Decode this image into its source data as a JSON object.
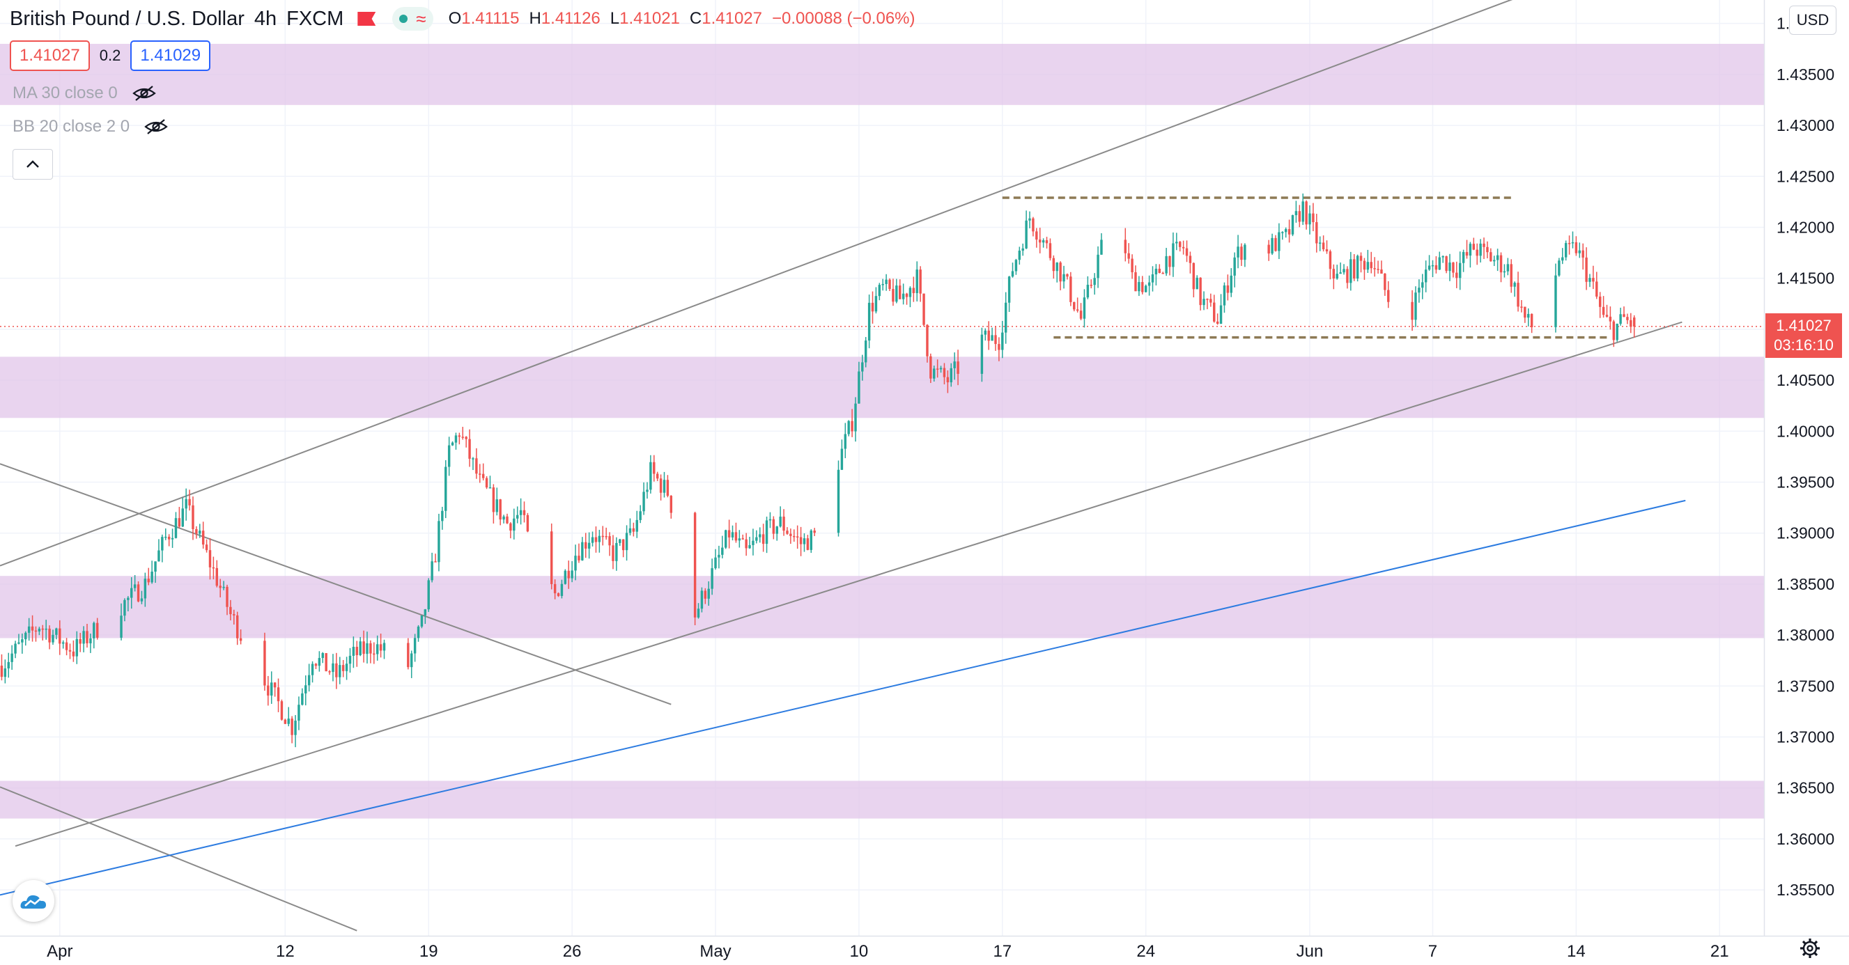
{
  "header": {
    "symbol": "British Pound / U.S. Dollar",
    "interval": "4h",
    "broker": "FXCM",
    "ohlc": {
      "o_label": "O",
      "o": "1.41115",
      "h_label": "H",
      "h": "1.41126",
      "l_label": "L",
      "l": "1.41021",
      "c_label": "C",
      "c": "1.41027",
      "change": "−0.00088 (−0.06%)"
    }
  },
  "quote": {
    "bid": "1.41027",
    "spread": "0.2",
    "ask": "1.41029"
  },
  "indicators": {
    "ma": "MA 30 close 0",
    "bb": "BB 20 close 2 0"
  },
  "currency": "USD",
  "price_tag": {
    "price": "1.41027",
    "countdown": "03:16:10"
  },
  "colors": {
    "up": "#26a69a",
    "down": "#ef5350",
    "zone": "#e1c6ea",
    "trend_blue": "#2c7be0",
    "level": "#8d7a55"
  },
  "chart_data": {
    "type": "candlestick",
    "title": "British Pound / U.S. Dollar",
    "ylim": [
      1.3505,
      1.4423
    ],
    "y_ticks": [
      "1.35500",
      "1.36000",
      "1.36500",
      "1.37000",
      "1.37500",
      "1.38000",
      "1.38500",
      "1.39000",
      "1.39500",
      "1.40000",
      "1.40500",
      "1.41000",
      "1.41500",
      "1.42000",
      "1.42500",
      "1.43000",
      "1.43500",
      "1.44000"
    ],
    "x_ticks": [
      "Apr",
      "12",
      "19",
      "26",
      "May",
      "10",
      "17",
      "24",
      "Jun",
      "7",
      "14",
      "21"
    ],
    "x_tick_dates": [
      "2021-04-01",
      "2021-04-12",
      "2021-04-19",
      "2021-04-26",
      "2021-05-03",
      "2021-05-10",
      "2021-05-17",
      "2021-05-24",
      "2021-06-01",
      "2021-06-07",
      "2021-06-14",
      "2021-06-21"
    ],
    "xlim": [
      "2021-03-29 02:00",
      "2021-06-23 04:00"
    ],
    "current_price": 1.41027,
    "horizontal_zones": [
      {
        "from": 1.432,
        "to": 1.438
      },
      {
        "from": 1.4013,
        "to": 1.4073
      },
      {
        "from": 1.3797,
        "to": 1.3858
      },
      {
        "from": 1.362,
        "to": 1.3657
      }
    ],
    "dashed_levels": [
      {
        "price": 1.4229,
        "from": "2021-05-17 00:00",
        "to": "2021-06-11 00:00"
      },
      {
        "price": 1.4092,
        "from": "2021-05-19 12:00",
        "to": "2021-06-15 12:00"
      }
    ],
    "trendlines": [
      {
        "color": "gray",
        "points": [
          [
            "2021-03-29 02:00",
            1.3868
          ],
          [
            "2021-06-11 08:00",
            1.4427
          ]
        ]
      },
      {
        "color": "gray",
        "points": [
          [
            "2021-03-29 20:00",
            1.3593
          ],
          [
            "2021-06-19 04:00",
            1.4107
          ]
        ]
      },
      {
        "color": "gray",
        "points": [
          [
            "2021-03-29 02:00",
            1.3968
          ],
          [
            "2021-04-30 20:00",
            1.3732
          ]
        ]
      },
      {
        "color": "gray",
        "points": [
          [
            "2021-03-29 02:00",
            1.3651
          ],
          [
            "2021-04-15 12:00",
            1.351
          ]
        ]
      },
      {
        "color": "blue",
        "points": [
          [
            "2021-03-29 02:00",
            1.3545
          ],
          [
            "2021-06-19 08:00",
            1.3932
          ]
        ]
      }
    ],
    "anchors": [
      [
        "2021-03-29 04:00",
        1.377
      ],
      [
        "2021-03-31 00:00",
        1.381
      ],
      [
        "2021-04-01 16:00",
        1.3785
      ],
      [
        "2021-04-05 04:00",
        1.385
      ],
      [
        "2021-04-06 04:00",
        1.3895
      ],
      [
        "2021-04-07 04:00",
        1.3925
      ],
      [
        "2021-04-08 16:00",
        1.3855
      ],
      [
        "2021-04-09 08:00",
        1.382
      ],
      [
        "2021-04-11 04:00",
        1.375
      ],
      [
        "2021-04-12 08:00",
        1.371
      ],
      [
        "2021-04-13 08:00",
        1.378
      ],
      [
        "2021-04-14 12:00",
        1.376
      ],
      [
        "2021-04-15 08:00",
        1.378
      ],
      [
        "2021-04-16 08:00",
        1.379
      ],
      [
        "2021-04-18 00:00",
        1.377
      ],
      [
        "2021-04-18 16:00",
        1.381
      ],
      [
        "2021-04-19 08:00",
        1.388
      ],
      [
        "2021-04-20 00:00",
        1.398
      ],
      [
        "2021-04-20 12:00",
        1.4
      ],
      [
        "2021-04-21 12:00",
        1.395
      ],
      [
        "2021-04-22 08:00",
        1.3925
      ],
      [
        "2021-04-22 20:00",
        1.391
      ],
      [
        "2021-04-23 12:00",
        1.392
      ],
      [
        "2021-04-24 04:00",
        1.387
      ],
      [
        "2021-04-25 04:00",
        1.384
      ],
      [
        "2021-04-26 04:00",
        1.388
      ],
      [
        "2021-04-27 00:00",
        1.39
      ],
      [
        "2021-04-28 00:00",
        1.388
      ],
      [
        "2021-04-29 00:00",
        1.39
      ],
      [
        "2021-04-29 20:00",
        1.396
      ],
      [
        "2021-04-30 16:00",
        1.394
      ],
      [
        "2021-05-01 08:00",
        1.389
      ],
      [
        "2021-05-02 00:00",
        1.382
      ],
      [
        "2021-05-02 20:00",
        1.386
      ],
      [
        "2021-05-03 16:00",
        1.39
      ],
      [
        "2021-05-04 12:00",
        1.388
      ],
      [
        "2021-05-05 08:00",
        1.39
      ],
      [
        "2021-05-06 04:00",
        1.391
      ],
      [
        "2021-05-07 04:00",
        1.389
      ],
      [
        "2021-05-08 04:00",
        1.39
      ],
      [
        "2021-05-08 20:00",
        1.396
      ],
      [
        "2021-05-09 16:00",
        1.401
      ],
      [
        "2021-05-10 12:00",
        1.412
      ],
      [
        "2021-05-11 04:00",
        1.414
      ],
      [
        "2021-05-12 00:00",
        1.413
      ],
      [
        "2021-05-12 20:00",
        1.415
      ],
      [
        "2021-05-13 12:00",
        1.406
      ],
      [
        "2021-05-14 08:00",
        1.405
      ],
      [
        "2021-05-15 04:00",
        1.407
      ],
      [
        "2021-05-16 00:00",
        1.409
      ],
      [
        "2021-05-16 20:00",
        1.409
      ],
      [
        "2021-05-17 12:00",
        1.416
      ],
      [
        "2021-05-18 08:00",
        1.421
      ],
      [
        "2021-05-19 04:00",
        1.418
      ],
      [
        "2021-05-20 00:00",
        1.415
      ],
      [
        "2021-05-20 20:00",
        1.411
      ],
      [
        "2021-05-21 16:00",
        1.417
      ],
      [
        "2021-05-22 12:00",
        1.422
      ],
      [
        "2021-05-23 08:00",
        1.415
      ],
      [
        "2021-05-24 04:00",
        1.414
      ],
      [
        "2021-05-25 00:00",
        1.417
      ],
      [
        "2021-05-25 20:00",
        1.418
      ],
      [
        "2021-05-26 16:00",
        1.413
      ],
      [
        "2021-05-27 12:00",
        1.411
      ],
      [
        "2021-05-28 08:00",
        1.417
      ],
      [
        "2021-05-29 04:00",
        1.419
      ],
      [
        "2021-05-30 00:00",
        1.418
      ],
      [
        "2021-05-30 20:00",
        1.419
      ],
      [
        "2021-05-31 16:00",
        1.422
      ],
      [
        "2021-06-01 12:00",
        1.418
      ],
      [
        "2021-06-02 08:00",
        1.415
      ],
      [
        "2021-06-03 04:00",
        1.416
      ],
      [
        "2021-06-04 00:00",
        1.417
      ],
      [
        "2021-06-04 20:00",
        1.413
      ],
      [
        "2021-06-05 16:00",
        1.41
      ],
      [
        "2021-06-06 12:00",
        1.415
      ],
      [
        "2021-06-07 08:00",
        1.417
      ],
      [
        "2021-06-08 04:00",
        1.416
      ],
      [
        "2021-06-09 00:00",
        1.418
      ],
      [
        "2021-06-09 20:00",
        1.417
      ],
      [
        "2021-06-10 16:00",
        1.416
      ],
      [
        "2021-06-11 12:00",
        1.411
      ],
      [
        "2021-06-12 08:00",
        1.409
      ],
      [
        "2021-06-13 04:00",
        1.417
      ],
      [
        "2021-06-14 00:00",
        1.418
      ],
      [
        "2021-06-14 20:00",
        1.414
      ],
      [
        "2021-06-15 08:00",
        1.411
      ],
      [
        "2021-06-15 20:00",
        1.41
      ],
      [
        "2021-06-16 08:00",
        1.411
      ],
      [
        "2021-06-16 20:00",
        1.4103
      ]
    ]
  }
}
